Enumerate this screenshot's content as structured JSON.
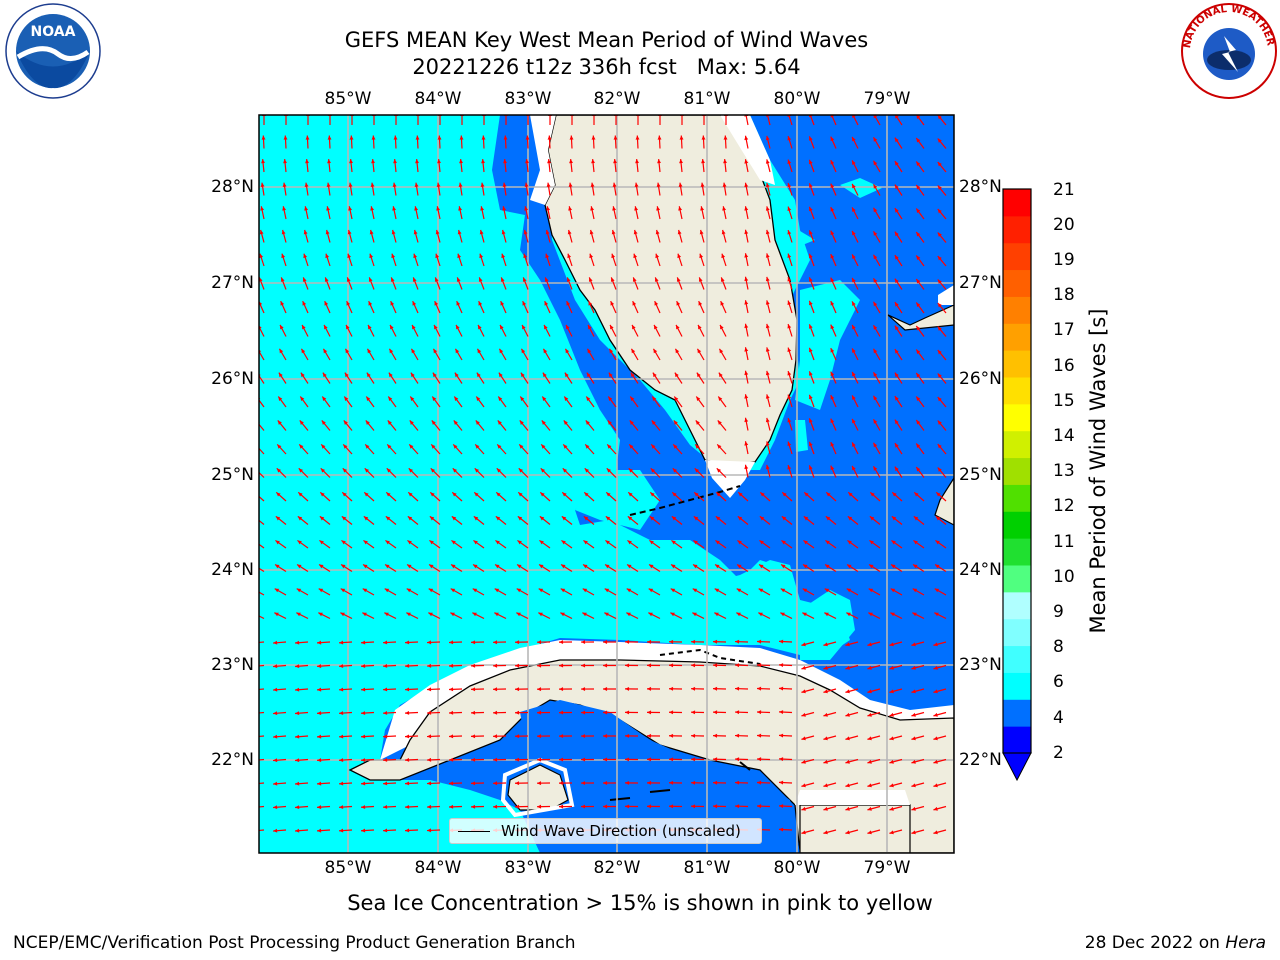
{
  "title": {
    "line1": "GEFS MEAN Key West Mean Period of Wind Waves",
    "line2": "20221226 t12z 336h fcst   Max: 5.64"
  },
  "map": {
    "lon_labels": [
      "85°W",
      "84°W",
      "83°W",
      "82°W",
      "81°W",
      "80°W",
      "79°W"
    ],
    "lat_labels": [
      "28°N",
      "27°N",
      "26°N",
      "25°N",
      "24°N",
      "23°N",
      "22°N"
    ],
    "legend_text": "Wind Wave Direction (unscaled)",
    "arrow_color": "#ff0000",
    "land_color": "#efedde",
    "grid_color": "#b8b8b8"
  },
  "colorbar": {
    "label": "Mean Period of Wind Waves [s]",
    "ticks": [
      "21",
      "20",
      "19",
      "18",
      "17",
      "16",
      "15",
      "14",
      "13",
      "12",
      "11",
      "10",
      "9",
      "8",
      "6",
      "4",
      "2"
    ],
    "colors": [
      "#0000ff",
      "#0070ff",
      "#00ffff",
      "#40ffff",
      "#80ffff",
      "#b0ffff",
      "#50ff80",
      "#20e030",
      "#00d000",
      "#50e000",
      "#a0e000",
      "#d0f000",
      "#ffff00",
      "#ffe000",
      "#ffc000",
      "#ffa000",
      "#ff8000",
      "#ff6000",
      "#ff4000",
      "#ff2000",
      "#ff0000"
    ]
  },
  "logos": {
    "noaa": "NOAA",
    "nws": "NATIONAL WEATHER SERVICE"
  },
  "footer": {
    "sea_ice_note": "Sea Ice Concentration > 15% is shown in pink to yellow",
    "left": "NCEP/EMC/Verification Post Processing Product Generation Branch",
    "right_date": "28 Dec 2022 on",
    "right_host": "Hera"
  }
}
